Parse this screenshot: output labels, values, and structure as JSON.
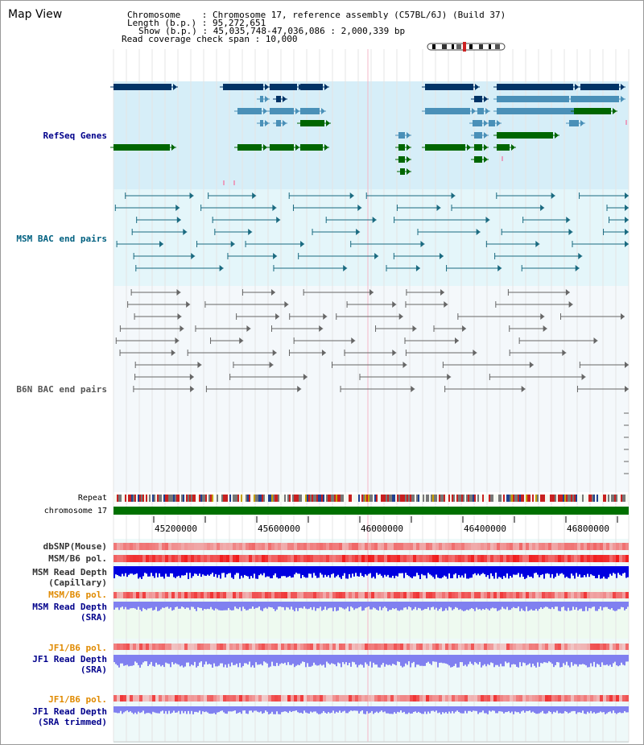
{
  "window": {
    "title": "Map View"
  },
  "header": {
    "chromosome_line": "Chromosome    : Chromosome 17, reference assembly (C57BL/6J) (Build 37)",
    "length_line": "Length (b.p.) : 95,272,651",
    "show_line": "Show (b.p.) : 45,035,748-47,036,086 : 2,000,339 bp",
    "coverage_line": "Read coverage check span : 10,000"
  },
  "tracks": {
    "refseq": "RefSeq Genes",
    "msm_bac": "MSM BAC end pairs",
    "b6n_bac": "B6N BAC end pairs",
    "repeat": "Repeat",
    "chromosome": "chromosome 17",
    "dbsnp": "dbSNP(Mouse)",
    "msm_b6_pol_1": "MSM/B6 pol.",
    "msm_read_depth_cap_1": "MSM Read Depth",
    "msm_read_depth_cap_2": "(Capillary)",
    "msm_b6_pol_2": "MSM/B6 pol.",
    "msm_read_depth_sra_1": "MSM Read Depth",
    "msm_read_depth_sra_2": "(SRA)",
    "jf1_b6_pol_1": "JF1/B6 pol.",
    "jf1_read_depth_sra_1": "JF1 Read Depth",
    "jf1_read_depth_sra_2": "(SRA)",
    "jf1_b6_pol_2": "JF1/B6 pol.",
    "jf1_read_depth_trim_1": "JF1 Read Depth",
    "jf1_read_depth_trim_2": "(SRA trimmed)"
  },
  "axis": {
    "ticks": [
      "45200000",
      "45600000",
      "46000000",
      "46400000",
      "46800000"
    ]
  },
  "colors": {
    "refseq_bg": "#d6eef8",
    "msm_bg": "#e4f6fa",
    "b6n_bg": "#f4f8fb",
    "gene_navy": "#003366",
    "gene_blue": "#4a90b8",
    "gene_green": "#006600",
    "bac_teal": "#1a6a80",
    "bac_gray": "#666666",
    "chromosome": "#007000",
    "depth_blue": "#0000e0",
    "depth_light": "#8080f0",
    "pol_red": "#e02020"
  }
}
